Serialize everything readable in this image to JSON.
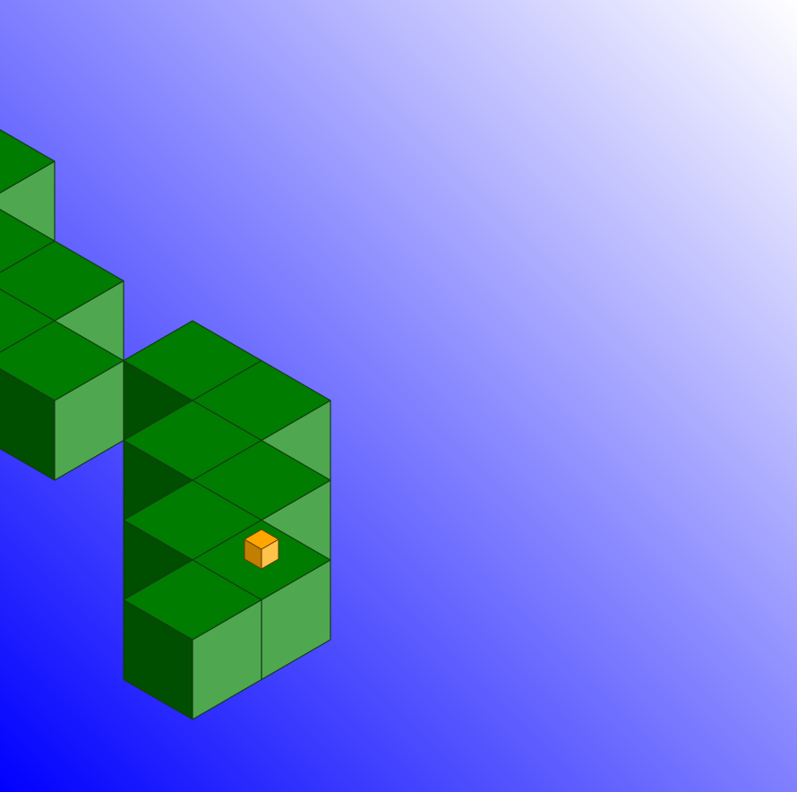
{
  "game": {
    "name": "isometric-zigzag-path-game",
    "colors": {
      "background_from": "#0000ff",
      "background_to": "#ffffff",
      "tile_top": "#007c00",
      "tile_left": "#004e00",
      "tile_right": "#4fa84f",
      "tile_outline": "#153a15",
      "player_top": "#ffa600",
      "player_left": "#c27e00",
      "player_right": "#ffc24a",
      "player_outline": "#5a3a00"
    },
    "path": {
      "tiles": [
        {
          "col": -2,
          "row": 0
        },
        {
          "col": -1,
          "row": 0
        },
        {
          "col": -1,
          "row": -1
        },
        {
          "col": 0,
          "row": -1
        },
        {
          "col": 0,
          "row": -2
        },
        {
          "col": 1,
          "row": -2
        },
        {
          "col": 1,
          "row": -3
        },
        {
          "col": 0,
          "row": -4
        },
        {
          "col": 0,
          "row": -5
        },
        {
          "col": 1,
          "row": -5
        },
        {
          "col": 1,
          "row": -6
        },
        {
          "col": 1,
          "row": -7
        },
        {
          "col": 2,
          "row": -7
        },
        {
          "col": 2,
          "row": -8
        },
        {
          "col": 2,
          "row": -9
        },
        {
          "col": 2,
          "row": -10
        },
        {
          "col": 3,
          "row": -10
        }
      ]
    },
    "player": {
      "shape": "cube",
      "on_tile_index": 1
    }
  }
}
